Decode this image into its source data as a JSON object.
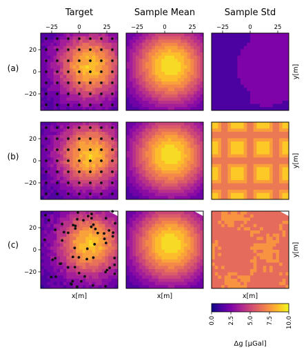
{
  "chart_data": {
    "type": "heatmap",
    "columns": [
      {
        "title": "Target"
      },
      {
        "title": "Sample Mean"
      },
      {
        "title": "Sample Std"
      }
    ],
    "rows": [
      {
        "label": "(a)",
        "ylabel": "y[m]",
        "layout": "grid7x7"
      },
      {
        "label": "(b)",
        "ylabel": "y[m]",
        "layout": "grid7x7"
      },
      {
        "label": "(c)",
        "ylabel": "y[m]",
        "layout": "random"
      }
    ],
    "xlabel": "x[m]",
    "x_ticks": [
      -25,
      0,
      25
    ],
    "y_ticks": [
      20,
      0,
      -20
    ],
    "xlim": [
      -35,
      35
    ],
    "ylim": [
      -35,
      35
    ],
    "colorbar": {
      "label": "Δg [μGal]",
      "min": 0,
      "max": 10,
      "ticks": [
        0.0,
        2.5,
        5.0,
        7.5,
        10.0
      ],
      "colormap": "plasma"
    },
    "grid": false
  }
}
